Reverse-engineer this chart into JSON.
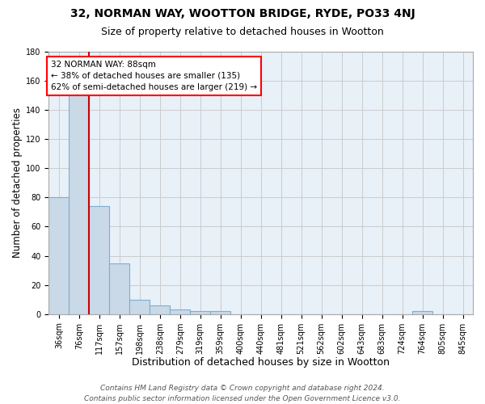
{
  "title1": "32, NORMAN WAY, WOOTTON BRIDGE, RYDE, PO33 4NJ",
  "title2": "Size of property relative to detached houses in Wootton",
  "xlabel": "Distribution of detached houses by size in Wootton",
  "ylabel": "Number of detached properties",
  "categories": [
    "36sqm",
    "76sqm",
    "117sqm",
    "157sqm",
    "198sqm",
    "238sqm",
    "279sqm",
    "319sqm",
    "359sqm",
    "400sqm",
    "440sqm",
    "481sqm",
    "521sqm",
    "562sqm",
    "602sqm",
    "643sqm",
    "683sqm",
    "724sqm",
    "764sqm",
    "805sqm",
    "845sqm"
  ],
  "values": [
    80,
    151,
    74,
    35,
    10,
    6,
    3,
    2,
    2,
    0,
    0,
    0,
    0,
    0,
    0,
    0,
    0,
    0,
    2,
    0,
    0
  ],
  "bar_color": "#c9d9e8",
  "bar_edge_color": "#7bafd4",
  "annotation_line1": "32 NORMAN WAY: 88sqm",
  "annotation_line2": "← 38% of detached houses are smaller (135)",
  "annotation_line3": "62% of semi-detached houses are larger (219) →",
  "annotation_box_color": "white",
  "annotation_box_edge_color": "red",
  "red_line_color": "#cc0000",
  "ylim": [
    0,
    180
  ],
  "yticks": [
    0,
    20,
    40,
    60,
    80,
    100,
    120,
    140,
    160,
    180
  ],
  "grid_color": "#cccccc",
  "bg_color": "#e8f0f8",
  "footer1": "Contains HM Land Registry data © Crown copyright and database right 2024.",
  "footer2": "Contains public sector information licensed under the Open Government Licence v3.0.",
  "title1_fontsize": 10,
  "title2_fontsize": 9,
  "xlabel_fontsize": 9,
  "ylabel_fontsize": 8.5,
  "tick_fontsize": 7,
  "annotation_fontsize": 7.5,
  "footer_fontsize": 6.5
}
